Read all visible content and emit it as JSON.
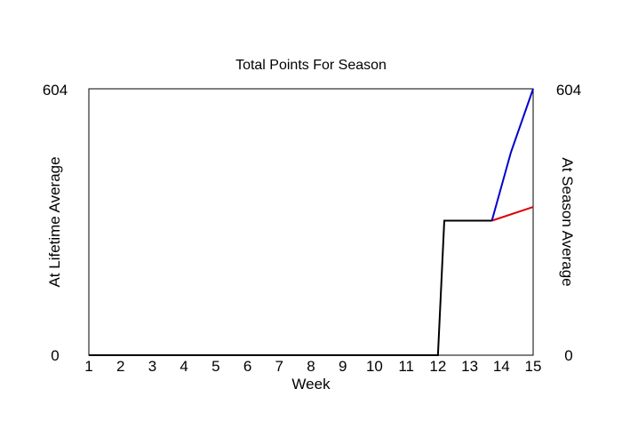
{
  "chart_data": {
    "type": "line",
    "title": "Total Points For Season",
    "xlabel": "Week",
    "ylabel_left": "At Lifetime Average",
    "ylabel_right": "At Season Average",
    "xlim": [
      1,
      15
    ],
    "ylim": [
      0,
      604
    ],
    "x_ticks": [
      "1",
      "2",
      "3",
      "4",
      "5",
      "6",
      "7",
      "8",
      "9",
      "10",
      "11",
      "12",
      "13",
      "14",
      "15"
    ],
    "y_ticks_left": [
      "0",
      "604"
    ],
    "y_ticks_right": [
      "0",
      "604"
    ],
    "grid": false,
    "colors": {
      "actual": "#000000",
      "lifetime": "#0000cc",
      "season": "#dd0000",
      "ylabel_left": "#0000cc",
      "ylabel_right": "#dd0000"
    },
    "series": [
      {
        "key": "actual",
        "points": [
          [
            1,
            0
          ],
          [
            2,
            0
          ],
          [
            3,
            0
          ],
          [
            4,
            0
          ],
          [
            5,
            0
          ],
          [
            6,
            0
          ],
          [
            7,
            0
          ],
          [
            8,
            0
          ],
          [
            9,
            0
          ],
          [
            10,
            0
          ],
          [
            11,
            0
          ],
          [
            12,
            0
          ],
          [
            12.2,
            305
          ],
          [
            13.7,
            305
          ]
        ]
      },
      {
        "key": "lifetime",
        "points": [
          [
            13.7,
            305
          ],
          [
            14.3,
            460
          ],
          [
            15,
            604
          ]
        ]
      },
      {
        "key": "season",
        "points": [
          [
            13.7,
            305
          ],
          [
            15,
            336
          ]
        ]
      }
    ]
  }
}
